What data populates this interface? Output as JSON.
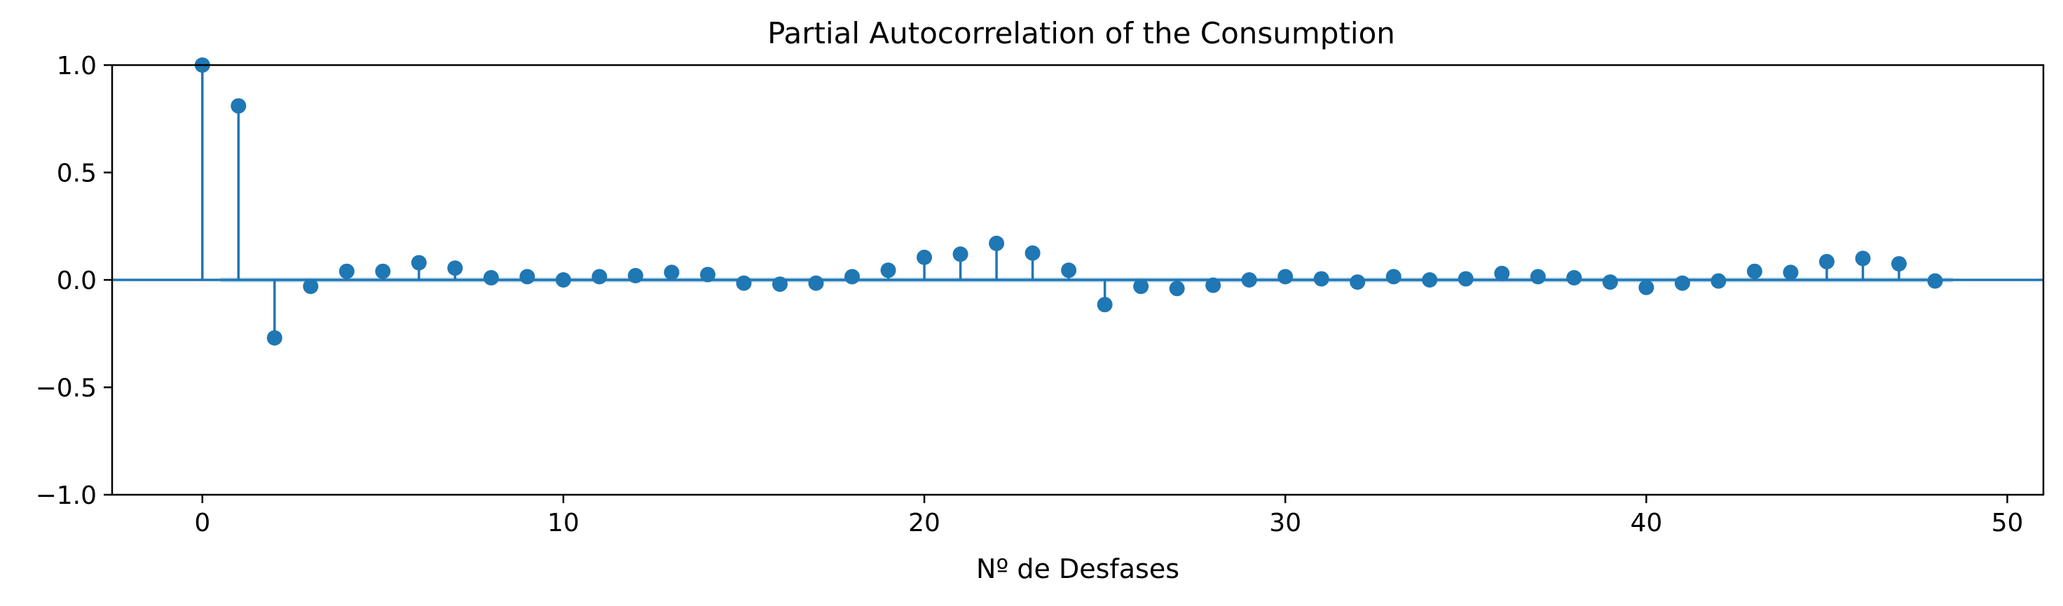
{
  "chart_data": {
    "type": "stem",
    "title": "Partial Autocorrelation of the Consumption",
    "xlabel": "Nº de Desfases",
    "ylabel": "",
    "xlim": [
      -2.5,
      51
    ],
    "ylim": [
      -1.0,
      1.0
    ],
    "x_ticks": [
      0,
      10,
      20,
      30,
      40,
      50
    ],
    "x_tick_labels": [
      "0",
      "10",
      "20",
      "30",
      "40",
      "50"
    ],
    "y_ticks": [
      1.0,
      0.5,
      0.0,
      -0.5,
      -1.0
    ],
    "y_tick_labels": [
      "1.0",
      "0.5",
      "0.0",
      "−0.5",
      "−1.0"
    ],
    "grid": false,
    "color": "#1f77b4",
    "confidence_band": 0.012,
    "lags": [
      0,
      1,
      2,
      3,
      4,
      5,
      6,
      7,
      8,
      9,
      10,
      11,
      12,
      13,
      14,
      15,
      16,
      17,
      18,
      19,
      20,
      21,
      22,
      23,
      24,
      25,
      26,
      27,
      28,
      29,
      30,
      31,
      32,
      33,
      34,
      35,
      36,
      37,
      38,
      39,
      40,
      41,
      42,
      43,
      44,
      45,
      46,
      47,
      48
    ],
    "values": [
      1.0,
      0.81,
      -0.27,
      -0.03,
      0.04,
      0.04,
      0.08,
      0.055,
      0.01,
      0.015,
      0.0,
      0.015,
      0.02,
      0.035,
      0.025,
      -0.015,
      -0.02,
      -0.015,
      0.015,
      0.045,
      0.105,
      0.12,
      0.17,
      0.125,
      0.045,
      -0.115,
      -0.03,
      -0.04,
      -0.025,
      0.0,
      0.015,
      0.005,
      -0.01,
      0.015,
      0.0,
      0.005,
      0.03,
      0.015,
      0.01,
      -0.01,
      -0.035,
      -0.015,
      -0.005,
      0.04,
      0.035,
      0.085,
      0.1,
      0.075,
      -0.005
    ]
  }
}
